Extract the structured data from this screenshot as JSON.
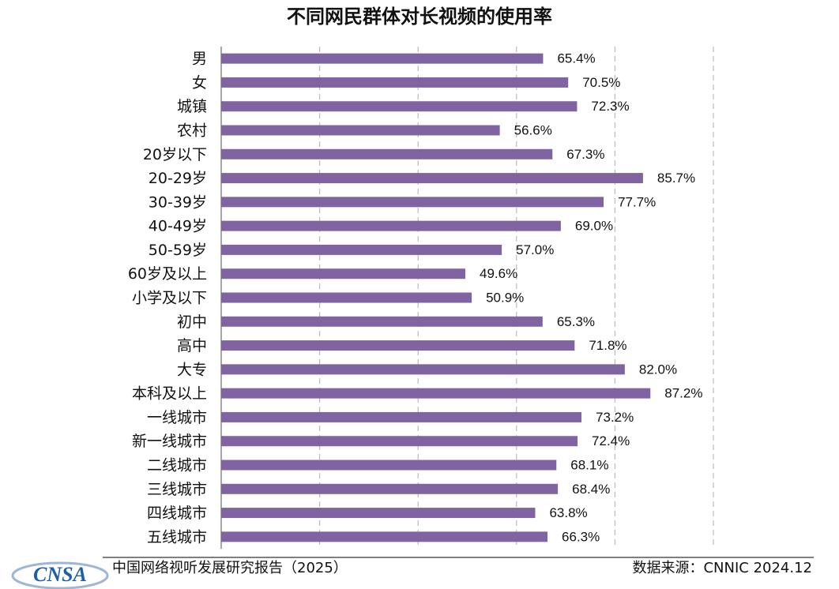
{
  "chart_data": {
    "type": "hbar",
    "title": "不同网民群体对长视频的使用率",
    "categories": [
      "男",
      "女",
      "城镇",
      "农村",
      "20岁以下",
      "20-29岁",
      "30-39岁",
      "40-49岁",
      "50-59岁",
      "60岁及以上",
      "小学及以下",
      "初中",
      "高中",
      "大专",
      "本科及以上",
      "一线城市",
      "新一线城市",
      "二线城市",
      "三线城市",
      "四线城市",
      "五线城市"
    ],
    "values": [
      65.4,
      70.5,
      72.3,
      56.6,
      67.3,
      85.7,
      77.7,
      69.0,
      57.0,
      49.6,
      50.9,
      65.3,
      71.8,
      82.0,
      87.2,
      73.2,
      72.4,
      68.1,
      68.4,
      63.8,
      66.3
    ],
    "value_labels": [
      "65.4%",
      "70.5%",
      "72.3%",
      "56.6%",
      "67.3%",
      "85.7%",
      "77.7%",
      "69.0%",
      "57.0%",
      "49.6%",
      "50.9%",
      "65.3%",
      "71.8%",
      "82.0%",
      "87.2%",
      "73.2%",
      "72.4%",
      "68.1%",
      "68.4%",
      "63.8%",
      "66.3%"
    ],
    "color": "#8064a2",
    "xlim": [
      0,
      100
    ],
    "xticks": [
      0,
      20,
      40,
      60,
      80,
      100
    ],
    "grid": true
  },
  "footer": {
    "report": "中国网络视听发展研究报告（2025）",
    "source": "数据来源：CNNIC  2024.12",
    "logo": "CNSA"
  }
}
